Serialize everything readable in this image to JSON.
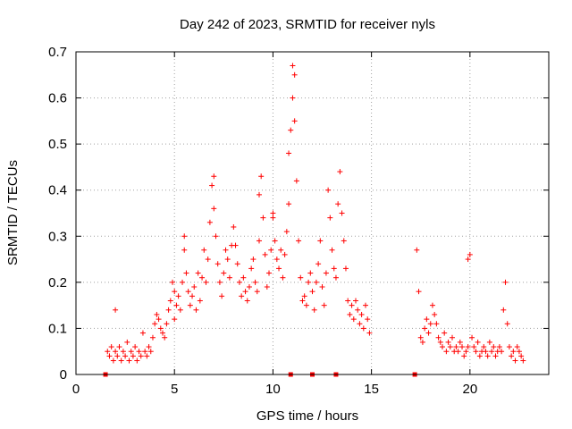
{
  "chart_data": {
    "type": "scatter",
    "title": "Day 242 of 2023, SRMTID for receiver nyls",
    "xlabel": "GPS time / hours",
    "ylabel": "SRMTID / TECUs",
    "xlim": [
      0,
      24
    ],
    "ylim": [
      0,
      0.7
    ],
    "xticks": [
      0,
      5,
      10,
      15,
      20
    ],
    "yticks": [
      0,
      0.1,
      0.2,
      0.3,
      0.4,
      0.5,
      0.6,
      0.7
    ],
    "xtick_labels": [
      "0",
      "5",
      "10",
      "15",
      "20"
    ],
    "ytick_labels": [
      "0",
      "0.1",
      "0.2",
      "0.3",
      "0.4",
      "0.5",
      "0.6",
      "0.7"
    ],
    "grid": true,
    "marker": "+",
    "color": "#ff0000",
    "zero_markers_x": [
      1.5,
      10.9,
      12.0,
      13.2,
      17.2
    ],
    "series": [
      {
        "name": "SRMTID",
        "points": [
          [
            1.6,
            0.05
          ],
          [
            1.7,
            0.04
          ],
          [
            1.8,
            0.06
          ],
          [
            1.9,
            0.03
          ],
          [
            2.0,
            0.05
          ],
          [
            2.0,
            0.14
          ],
          [
            2.1,
            0.04
          ],
          [
            2.2,
            0.06
          ],
          [
            2.3,
            0.03
          ],
          [
            2.4,
            0.05
          ],
          [
            2.5,
            0.04
          ],
          [
            2.6,
            0.07
          ],
          [
            2.7,
            0.03
          ],
          [
            2.8,
            0.05
          ],
          [
            2.9,
            0.04
          ],
          [
            3.0,
            0.06
          ],
          [
            3.1,
            0.03
          ],
          [
            3.2,
            0.05
          ],
          [
            3.3,
            0.04
          ],
          [
            3.4,
            0.09
          ],
          [
            3.5,
            0.05
          ],
          [
            3.6,
            0.04
          ],
          [
            3.7,
            0.06
          ],
          [
            3.8,
            0.05
          ],
          [
            3.9,
            0.08
          ],
          [
            4.0,
            0.11
          ],
          [
            4.1,
            0.13
          ],
          [
            4.2,
            0.12
          ],
          [
            4.3,
            0.1
          ],
          [
            4.4,
            0.09
          ],
          [
            4.5,
            0.08
          ],
          [
            4.6,
            0.11
          ],
          [
            4.7,
            0.14
          ],
          [
            4.8,
            0.16
          ],
          [
            4.9,
            0.2
          ],
          [
            5.0,
            0.18
          ],
          [
            5.0,
            0.12
          ],
          [
            5.1,
            0.15
          ],
          [
            5.2,
            0.17
          ],
          [
            5.3,
            0.14
          ],
          [
            5.4,
            0.2
          ],
          [
            5.5,
            0.27
          ],
          [
            5.5,
            0.3
          ],
          [
            5.6,
            0.22
          ],
          [
            5.7,
            0.18
          ],
          [
            5.8,
            0.15
          ],
          [
            5.9,
            0.17
          ],
          [
            6.0,
            0.19
          ],
          [
            6.1,
            0.14
          ],
          [
            6.2,
            0.22
          ],
          [
            6.3,
            0.16
          ],
          [
            6.4,
            0.21
          ],
          [
            6.5,
            0.27
          ],
          [
            6.6,
            0.2
          ],
          [
            6.7,
            0.25
          ],
          [
            6.8,
            0.33
          ],
          [
            6.9,
            0.41
          ],
          [
            7.0,
            0.43
          ],
          [
            7.0,
            0.36
          ],
          [
            7.1,
            0.3
          ],
          [
            7.2,
            0.24
          ],
          [
            7.3,
            0.2
          ],
          [
            7.4,
            0.17
          ],
          [
            7.5,
            0.22
          ],
          [
            7.6,
            0.27
          ],
          [
            7.7,
            0.25
          ],
          [
            7.8,
            0.21
          ],
          [
            7.9,
            0.28
          ],
          [
            8.0,
            0.32
          ],
          [
            8.1,
            0.28
          ],
          [
            8.2,
            0.24
          ],
          [
            8.3,
            0.2
          ],
          [
            8.4,
            0.17
          ],
          [
            8.5,
            0.21
          ],
          [
            8.6,
            0.18
          ],
          [
            8.7,
            0.16
          ],
          [
            8.8,
            0.19
          ],
          [
            8.9,
            0.23
          ],
          [
            9.0,
            0.25
          ],
          [
            9.1,
            0.2
          ],
          [
            9.2,
            0.18
          ],
          [
            9.3,
            0.29
          ],
          [
            9.3,
            0.39
          ],
          [
            9.4,
            0.43
          ],
          [
            9.5,
            0.34
          ],
          [
            9.6,
            0.26
          ],
          [
            9.7,
            0.19
          ],
          [
            9.8,
            0.22
          ],
          [
            9.9,
            0.27
          ],
          [
            10.0,
            0.34
          ],
          [
            10.0,
            0.35
          ],
          [
            10.1,
            0.29
          ],
          [
            10.2,
            0.25
          ],
          [
            10.3,
            0.23
          ],
          [
            10.4,
            0.27
          ],
          [
            10.5,
            0.21
          ],
          [
            10.6,
            0.26
          ],
          [
            10.7,
            0.31
          ],
          [
            10.8,
            0.37
          ],
          [
            10.8,
            0.48
          ],
          [
            10.9,
            0.53
          ],
          [
            11.0,
            0.6
          ],
          [
            11.0,
            0.67
          ],
          [
            11.1,
            0.65
          ],
          [
            11.1,
            0.55
          ],
          [
            11.2,
            0.42
          ],
          [
            11.3,
            0.29
          ],
          [
            11.4,
            0.21
          ],
          [
            11.5,
            0.16
          ],
          [
            11.6,
            0.17
          ],
          [
            11.7,
            0.15
          ],
          [
            11.8,
            0.2
          ],
          [
            11.9,
            0.22
          ],
          [
            12.0,
            0.18
          ],
          [
            12.1,
            0.14
          ],
          [
            12.2,
            0.2
          ],
          [
            12.3,
            0.24
          ],
          [
            12.4,
            0.29
          ],
          [
            12.5,
            0.19
          ],
          [
            12.6,
            0.15
          ],
          [
            12.7,
            0.22
          ],
          [
            12.8,
            0.4
          ],
          [
            12.9,
            0.34
          ],
          [
            13.0,
            0.27
          ],
          [
            13.1,
            0.23
          ],
          [
            13.2,
            0.21
          ],
          [
            13.3,
            0.37
          ],
          [
            13.4,
            0.44
          ],
          [
            13.5,
            0.35
          ],
          [
            13.6,
            0.29
          ],
          [
            13.7,
            0.23
          ],
          [
            13.8,
            0.16
          ],
          [
            13.9,
            0.13
          ],
          [
            14.0,
            0.15
          ],
          [
            14.1,
            0.12
          ],
          [
            14.2,
            0.16
          ],
          [
            14.3,
            0.14
          ],
          [
            14.4,
            0.11
          ],
          [
            14.5,
            0.13
          ],
          [
            14.6,
            0.1
          ],
          [
            14.7,
            0.15
          ],
          [
            14.8,
            0.12
          ],
          [
            14.9,
            0.09
          ],
          [
            17.3,
            0.27
          ],
          [
            17.4,
            0.18
          ],
          [
            17.5,
            0.08
          ],
          [
            17.6,
            0.07
          ],
          [
            17.7,
            0.1
          ],
          [
            17.8,
            0.12
          ],
          [
            17.9,
            0.09
          ],
          [
            18.0,
            0.11
          ],
          [
            18.1,
            0.15
          ],
          [
            18.2,
            0.13
          ],
          [
            18.3,
            0.11
          ],
          [
            18.4,
            0.08
          ],
          [
            18.5,
            0.07
          ],
          [
            18.6,
            0.06
          ],
          [
            18.7,
            0.09
          ],
          [
            18.8,
            0.05
          ],
          [
            18.9,
            0.07
          ],
          [
            19.0,
            0.06
          ],
          [
            19.1,
            0.08
          ],
          [
            19.2,
            0.05
          ],
          [
            19.3,
            0.06
          ],
          [
            19.4,
            0.05
          ],
          [
            19.5,
            0.07
          ],
          [
            19.6,
            0.06
          ],
          [
            19.7,
            0.04
          ],
          [
            19.8,
            0.05
          ],
          [
            19.9,
            0.06
          ],
          [
            19.9,
            0.25
          ],
          [
            20.0,
            0.26
          ],
          [
            20.1,
            0.08
          ],
          [
            20.2,
            0.06
          ],
          [
            20.3,
            0.05
          ],
          [
            20.4,
            0.07
          ],
          [
            20.5,
            0.04
          ],
          [
            20.6,
            0.05
          ],
          [
            20.7,
            0.06
          ],
          [
            20.8,
            0.05
          ],
          [
            20.9,
            0.04
          ],
          [
            21.0,
            0.07
          ],
          [
            21.1,
            0.05
          ],
          [
            21.2,
            0.06
          ],
          [
            21.3,
            0.04
          ],
          [
            21.4,
            0.05
          ],
          [
            21.5,
            0.06
          ],
          [
            21.6,
            0.05
          ],
          [
            21.7,
            0.14
          ],
          [
            21.8,
            0.2
          ],
          [
            21.9,
            0.11
          ],
          [
            22.0,
            0.06
          ],
          [
            22.1,
            0.04
          ],
          [
            22.2,
            0.05
          ],
          [
            22.3,
            0.03
          ],
          [
            22.4,
            0.06
          ],
          [
            22.5,
            0.05
          ],
          [
            22.6,
            0.04
          ],
          [
            22.7,
            0.03
          ]
        ]
      }
    ]
  }
}
